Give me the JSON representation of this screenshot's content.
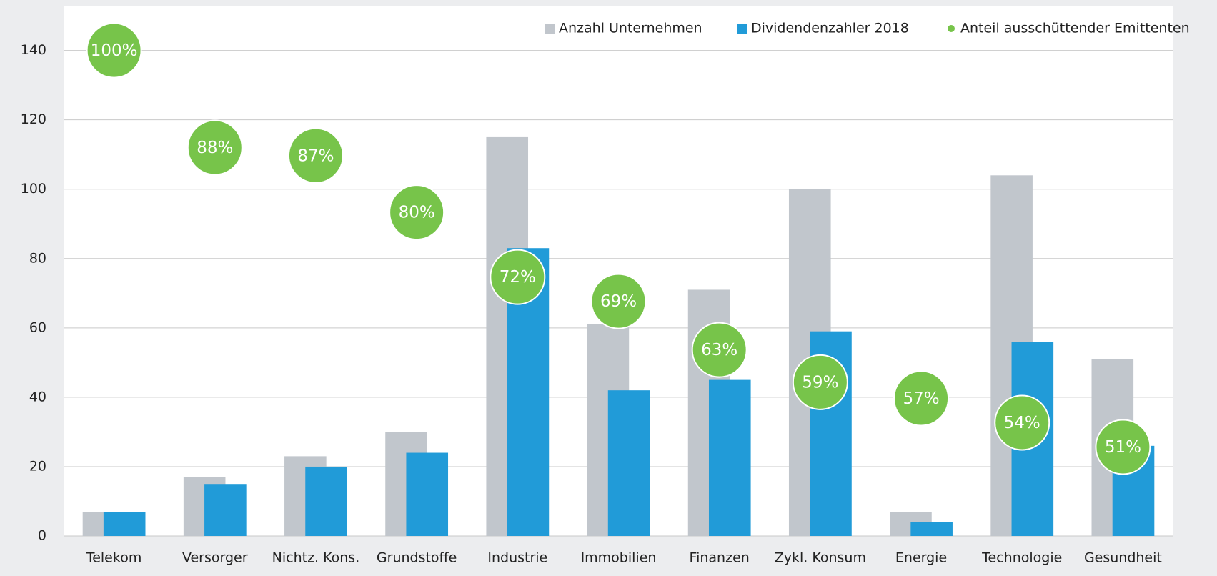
{
  "chart_data": {
    "type": "bar",
    "categories": [
      "Telekom",
      "Versorger",
      "Nichtz. Kons.",
      "Grundstoffe",
      "Industrie",
      "Immobilien",
      "Finanzen",
      "Zykl. Konsum",
      "Energie",
      "Technologie",
      "Gesundheit"
    ],
    "series": [
      {
        "name": "Anzahl Unternehmen",
        "color": "#c1c6cc",
        "values": [
          7,
          17,
          23,
          30,
          115,
          61,
          71,
          100,
          7,
          104,
          51
        ]
      },
      {
        "name": "Dividendenzahler 2018",
        "color": "#219bd8",
        "values": [
          7,
          15,
          20,
          24,
          83,
          42,
          45,
          59,
          4,
          56,
          26
        ]
      },
      {
        "name": "Anteil ausschüttender Emittenten",
        "color": "#77c44a",
        "type": "scatter",
        "axis": "y2",
        "values": [
          100,
          88,
          87,
          80,
          72,
          69,
          63,
          59,
          57,
          54,
          51
        ],
        "value_labels": [
          "100%",
          "88%",
          "87%",
          "80%",
          "72%",
          "69%",
          "63%",
          "59%",
          "57%",
          "54%",
          "51%"
        ]
      }
    ],
    "ylim": [
      0,
      140
    ],
    "yticks": [
      0,
      20,
      40,
      60,
      80,
      100,
      120,
      140
    ],
    "y2lim": [
      40,
      100
    ],
    "grid": true,
    "legend": "top-right"
  }
}
